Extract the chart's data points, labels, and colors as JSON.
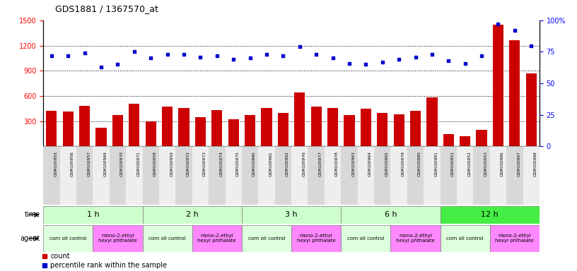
{
  "title": "GDS1881 / 1367570_at",
  "samples": [
    "GSM100955",
    "GSM100956",
    "GSM100957",
    "GSM100969",
    "GSM100970",
    "GSM100971",
    "GSM100958",
    "GSM100959",
    "GSM100972",
    "GSM100973",
    "GSM100974",
    "GSM100975",
    "GSM100960",
    "GSM100961",
    "GSM100962",
    "GSM100976",
    "GSM100977",
    "GSM100978",
    "GSM100963",
    "GSM100964",
    "GSM100965",
    "GSM100979",
    "GSM100980",
    "GSM100981",
    "GSM100951",
    "GSM100952",
    "GSM100953",
    "GSM100966",
    "GSM100967",
    "GSM100968"
  ],
  "counts": [
    420,
    415,
    480,
    220,
    370,
    510,
    300,
    470,
    455,
    345,
    430,
    325,
    375,
    455,
    395,
    640,
    475,
    455,
    375,
    445,
    395,
    385,
    425,
    585,
    145,
    120,
    195,
    1450,
    1265,
    870
  ],
  "percentiles": [
    72,
    72,
    74,
    63,
    65,
    75,
    70,
    73,
    73,
    71,
    72,
    69,
    70,
    73,
    72,
    79,
    73,
    70,
    66,
    65,
    67,
    69,
    71,
    73,
    68,
    66,
    72,
    97,
    92,
    80
  ],
  "ylim_left": [
    0,
    1500
  ],
  "ylim_right": [
    0,
    100
  ],
  "yticks_left": [
    300,
    600,
    900,
    1200,
    1500
  ],
  "yticks_right": [
    0,
    25,
    50,
    75,
    100
  ],
  "time_groups": [
    {
      "label": "1 h",
      "start": 0,
      "end": 6,
      "color": "#ccffcc"
    },
    {
      "label": "2 h",
      "start": 6,
      "end": 12,
      "color": "#ccffcc"
    },
    {
      "label": "3 h",
      "start": 12,
      "end": 18,
      "color": "#ccffcc"
    },
    {
      "label": "6 h",
      "start": 18,
      "end": 24,
      "color": "#ccffcc"
    },
    {
      "label": "12 h",
      "start": 24,
      "end": 30,
      "color": "#44ee44"
    }
  ],
  "agent_groups": [
    {
      "label": "corn oil control",
      "start": 0,
      "end": 3,
      "color": "#ddffdd"
    },
    {
      "label": "mono-2-ethyl\nhexyl phthalate",
      "start": 3,
      "end": 6,
      "color": "#ff88ff"
    },
    {
      "label": "corn oil control",
      "start": 6,
      "end": 9,
      "color": "#ddffdd"
    },
    {
      "label": "mono-2-ethyl\nhexyl phthalate",
      "start": 9,
      "end": 12,
      "color": "#ff88ff"
    },
    {
      "label": "corn oil control",
      "start": 12,
      "end": 15,
      "color": "#ddffdd"
    },
    {
      "label": "mono-2-ethyl\nhexyl phthalate",
      "start": 15,
      "end": 18,
      "color": "#ff88ff"
    },
    {
      "label": "corn oil control",
      "start": 18,
      "end": 21,
      "color": "#ddffdd"
    },
    {
      "label": "mono-2-ethyl\nhexyl phthalate",
      "start": 21,
      "end": 24,
      "color": "#ff88ff"
    },
    {
      "label": "corn oil control",
      "start": 24,
      "end": 27,
      "color": "#ddffdd"
    },
    {
      "label": "mono-2-ethyl\nhexyl phthalate",
      "start": 27,
      "end": 30,
      "color": "#ff88ff"
    }
  ],
  "bar_color": "#cc0000",
  "dot_color": "#0000cc",
  "label_bg_even": "#d8d8d8",
  "label_bg_odd": "#eeeeee"
}
